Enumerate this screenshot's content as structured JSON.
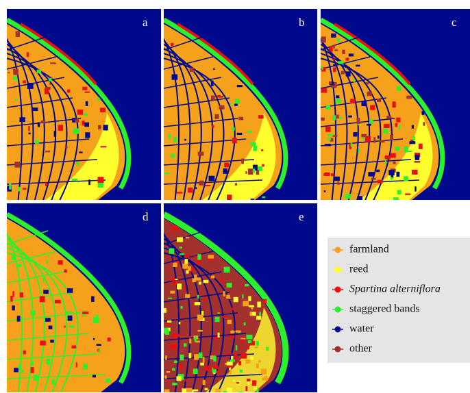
{
  "panels": [
    {
      "label": "a"
    },
    {
      "label": "b"
    },
    {
      "label": "c"
    },
    {
      "label": "d"
    },
    {
      "label": "e"
    }
  ],
  "legend": [
    {
      "label": "farmland",
      "color": "#f5a11c"
    },
    {
      "label": "reed",
      "color": "#ffff2e"
    },
    {
      "label": "Spartina alterniflora",
      "color": "#e81010"
    },
    {
      "label": "staggered bands",
      "color": "#2cf02c"
    },
    {
      "label": "water",
      "color": "#00088c"
    },
    {
      "label": "other",
      "color": "#a3322f"
    }
  ]
}
